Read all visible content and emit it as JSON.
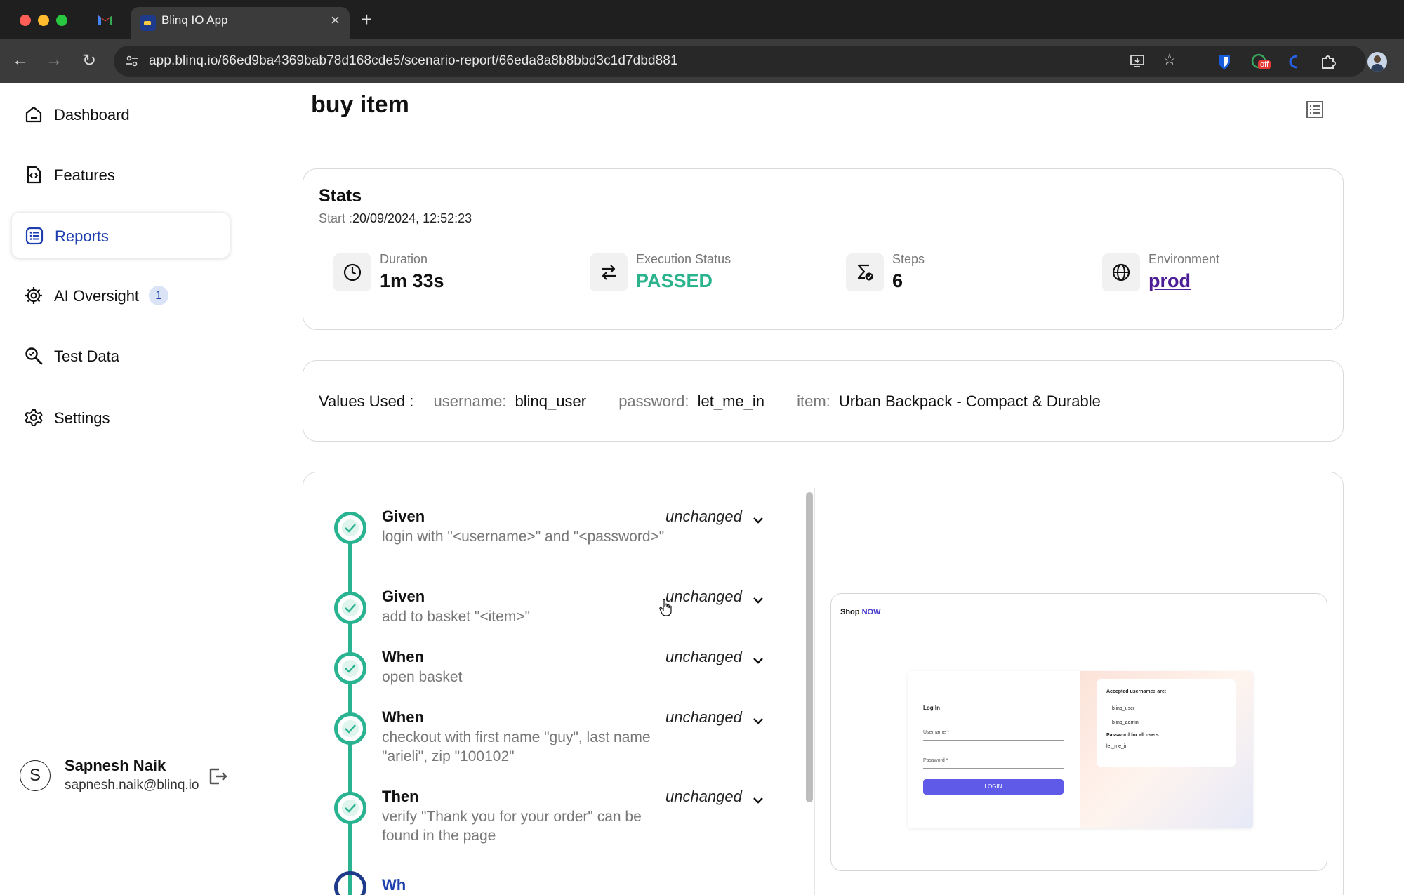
{
  "browser": {
    "tab_title": "Blinq IO App",
    "url": "app.blinq.io/66ed9ba4369bab78d168cde5/scenario-report/66eda8a8b8bbd3c1d7dbd881",
    "extension_badge": "off"
  },
  "sidebar": {
    "items": [
      {
        "label": "Dashboard",
        "icon": "home-icon"
      },
      {
        "label": "Features",
        "icon": "feature-file-icon"
      },
      {
        "label": "Reports",
        "icon": "list-icon",
        "active": true
      },
      {
        "label": "AI Oversight",
        "icon": "ai-gear-icon",
        "badge": "1"
      },
      {
        "label": "Test Data",
        "icon": "search-data-icon"
      },
      {
        "label": "Settings",
        "icon": "gear-icon"
      }
    ],
    "user": {
      "initial": "S",
      "name": "Sapnesh Naik",
      "email": "sapnesh.naik@blinq.io"
    }
  },
  "page": {
    "title": "buy item"
  },
  "stats": {
    "title": "Stats",
    "start_label": "Start :",
    "start_value": "20/09/2024, 12:52:23",
    "duration_label": "Duration",
    "duration_value": "1m 33s",
    "status_label": "Execution Status",
    "status_value": "PASSED",
    "steps_label": "Steps",
    "steps_value": "6",
    "env_label": "Environment",
    "env_value": "prod",
    "colors": {
      "passed": "#2bb38d",
      "link": "#4c1d95"
    }
  },
  "values": {
    "label": "Values Used :",
    "items": [
      {
        "key": "username:",
        "value": "blinq_user"
      },
      {
        "key": "password:",
        "value": "let_me_in"
      },
      {
        "key": "item:",
        "value": "Urban Backpack - Compact & Durable"
      }
    ]
  },
  "steps": [
    {
      "keyword": "Given",
      "text": "login with \"<username>\" and \"<password>\"",
      "status": "unchanged"
    },
    {
      "keyword": "Given",
      "text": "add to basket \"<item>\"",
      "status": "unchanged"
    },
    {
      "keyword": "When",
      "text": "open basket",
      "status": "unchanged"
    },
    {
      "keyword": "When",
      "text": "checkout with first name \"guy\", last name \"arieli\", zip \"100102\"",
      "status": "unchanged"
    },
    {
      "keyword": "Then",
      "text": "verify \"Thank you for your order\" can be found in the page",
      "status": "unchanged"
    },
    {
      "keyword": "Wh",
      "text": "",
      "status": ""
    }
  ],
  "preview": {
    "logo_shop": "Shop",
    "logo_now": "NOW",
    "login_title": "Log In",
    "username_label": "Username *",
    "password_label": "Password *",
    "login_button": "LOGIN",
    "accepted_title": "Accepted usernames are:",
    "user1": "blinq_user",
    "user2": "blinq_admin",
    "password_title": "Password for all users:",
    "password_value": "let_me_in"
  }
}
